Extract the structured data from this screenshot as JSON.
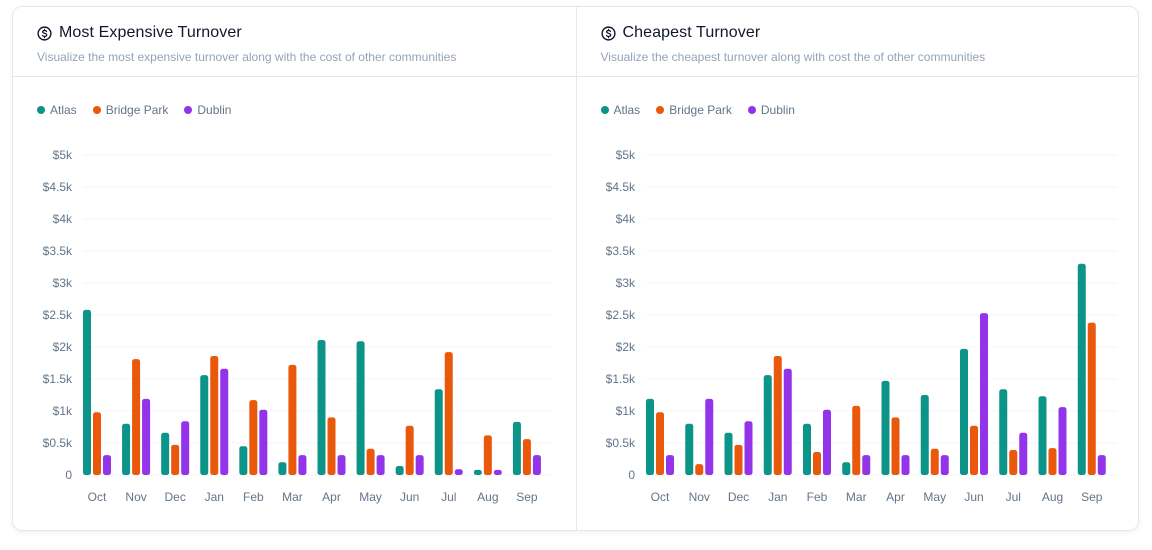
{
  "colors": {
    "Atlas": "#0d9488",
    "Bridge Park": "#ea580c",
    "Dublin": "#9333ea",
    "grid": "#f1f5f9"
  },
  "panels": [
    {
      "icon": "dollar-circle-icon",
      "title": "Most Expensive Turnover",
      "subtitle": "Visualize the most expensive turnover along with the cost of other communities",
      "legend": [
        "Atlas",
        "Bridge Park",
        "Dublin"
      ]
    },
    {
      "icon": "dollar-circle-icon",
      "title": "Cheapest Turnover",
      "subtitle": "Visualize the cheapest turnover along with cost the of other communities",
      "legend": [
        "Atlas",
        "Bridge Park",
        "Dublin"
      ]
    }
  ],
  "chart_data": [
    {
      "type": "bar",
      "title": "Most Expensive Turnover",
      "xlabel": "",
      "ylabel": "",
      "categories": [
        "Oct",
        "Nov",
        "Dec",
        "Jan",
        "Feb",
        "Mar",
        "Apr",
        "May",
        "Jun",
        "Jul",
        "Aug",
        "Sep"
      ],
      "yticks": [
        "0",
        "$0.5k",
        "$1k",
        "$1.5k",
        "$2k",
        "$2.5k",
        "$3k",
        "$3.5k",
        "$4k",
        "$4.5k",
        "$5k"
      ],
      "ylim": [
        0,
        5000
      ],
      "grid": true,
      "legend_position": "top-left",
      "series": [
        {
          "name": "Atlas",
          "values": [
            2580,
            800,
            660,
            1560,
            450,
            200,
            2110,
            2090,
            140,
            1340,
            80,
            830
          ]
        },
        {
          "name": "Bridge Park",
          "values": [
            980,
            1810,
            470,
            1860,
            1170,
            1720,
            900,
            410,
            770,
            1920,
            620,
            560
          ]
        },
        {
          "name": "Dublin",
          "values": [
            310,
            1190,
            840,
            1660,
            1020,
            310,
            310,
            310,
            310,
            90,
            80,
            310
          ]
        }
      ]
    },
    {
      "type": "bar",
      "title": "Cheapest Turnover",
      "xlabel": "",
      "ylabel": "",
      "categories": [
        "Oct",
        "Nov",
        "Dec",
        "Jan",
        "Feb",
        "Mar",
        "Apr",
        "May",
        "Jun",
        "Jul",
        "Aug",
        "Sep"
      ],
      "yticks": [
        "0",
        "$0.5k",
        "$1k",
        "$1.5k",
        "$2k",
        "$2.5k",
        "$3k",
        "$3.5k",
        "$4k",
        "$4.5k",
        "$5k"
      ],
      "ylim": [
        0,
        5000
      ],
      "grid": true,
      "legend_position": "top-left",
      "series": [
        {
          "name": "Atlas",
          "values": [
            1190,
            800,
            660,
            1560,
            800,
            200,
            1470,
            1250,
            1970,
            1340,
            1230,
            3300
          ]
        },
        {
          "name": "Bridge Park",
          "values": [
            980,
            170,
            470,
            1860,
            360,
            1080,
            900,
            410,
            770,
            390,
            420,
            2380
          ]
        },
        {
          "name": "Dublin",
          "values": [
            310,
            1190,
            840,
            1660,
            1020,
            310,
            310,
            310,
            2530,
            660,
            1060,
            310
          ]
        }
      ]
    }
  ]
}
